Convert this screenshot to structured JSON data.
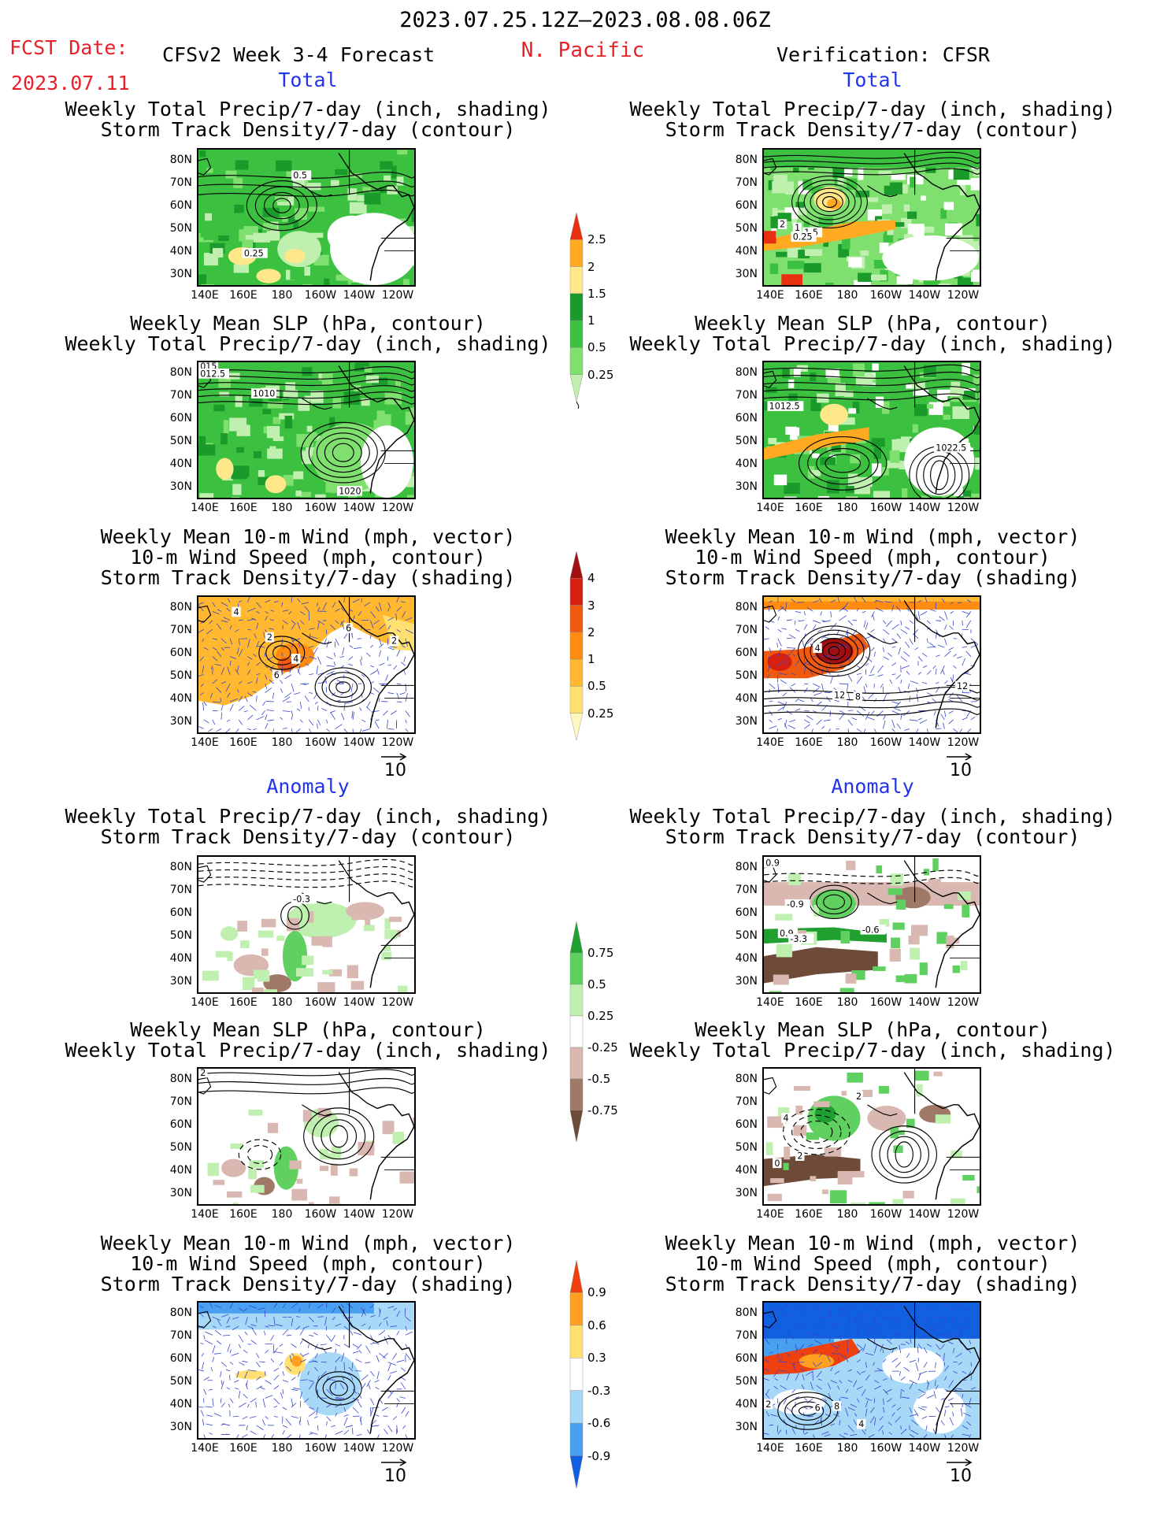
{
  "header": {
    "date_range": "2023.07.25.12Z—2023.08.08.06Z",
    "fcst_label": "FCST Date:",
    "fcst_date": "2023.07.11",
    "model": "CFSv2 Week 3-4 Forecast",
    "region": "N. Pacific",
    "verification": "Verification: CFSR"
  },
  "sections": {
    "total": "Total",
    "anomaly": "Anomaly"
  },
  "panel_titles": {
    "precip_storm": [
      "Weekly Total Precip/7-day (inch, shading)",
      "Storm Track Density/7-day (contour)"
    ],
    "slp_precip": [
      "Weekly Mean SLP (hPa, contour)",
      "Weekly Total Precip/7-day (inch, shading)"
    ],
    "wind_storm": [
      "Weekly Mean 10-m Wind (mph, vector)",
      "10-m Wind Speed (mph, contour)",
      "Storm Track Density/7-day (shading)"
    ]
  },
  "axes": {
    "lat_ticks": [
      "80N",
      "70N",
      "60N",
      "50N",
      "40N",
      "30N"
    ],
    "lon_ticks": [
      "140E",
      "160E",
      "180",
      "160W",
      "140W",
      "120W"
    ]
  },
  "vector_ref": "10",
  "colorbars": {
    "precip_total": {
      "colors": [
        "#bff0b0",
        "#7fe070",
        "#3cc040",
        "#1a9a2a",
        "#ffe88a",
        "#ffaa20",
        "#e83010"
      ],
      "labels": [
        "0.25",
        "0.5",
        "1",
        "1.5",
        "2",
        "2.5"
      ]
    },
    "storm_total": {
      "colors": [
        "#fff8c0",
        "#ffe070",
        "#ffb830",
        "#ff8c10",
        "#f05a10",
        "#d82010",
        "#a01010"
      ],
      "labels": [
        "0.25",
        "0.5",
        "1",
        "2",
        "3",
        "4"
      ]
    },
    "precip_anom": {
      "colors": [
        "#6e4a38",
        "#a07868",
        "#d8b8b0",
        "#ffffff",
        "#c0f0b0",
        "#60d060",
        "#20a030"
      ],
      "labels": [
        "-0.75",
        "-0.5",
        "-0.25",
        "0.25",
        "0.5",
        "0.75"
      ]
    },
    "storm_anom": {
      "colors": [
        "#1060e0",
        "#4aa0f0",
        "#a8d8f8",
        "#ffffff",
        "#ffe070",
        "#ffa020",
        "#f04010"
      ],
      "labels": [
        "-0.9",
        "-0.6",
        "-0.3",
        "0.3",
        "0.6",
        "0.9"
      ]
    }
  },
  "contour_labels": {
    "t_fc_precip": [
      "0.5",
      "0.25"
    ],
    "t_ob_precip": [
      "2",
      "1",
      "1.5",
      "0.25"
    ],
    "t_fc_slp": [
      "015",
      "012.5",
      "1010",
      "1020"
    ],
    "t_ob_slp": [
      "1012.5",
      "1022.5"
    ],
    "t_fc_wind": [
      "4",
      "2",
      "4",
      "6",
      "6",
      "2"
    ],
    "t_ob_wind": [
      "4",
      "12",
      "8",
      "12"
    ],
    "a_fc_precip": [
      "-0.3"
    ],
    "a_ob_precip": [
      "0.9",
      "-0.9",
      "0.9",
      "-3.3",
      "-0.6"
    ],
    "a_fc_slp": [
      "2"
    ],
    "a_ob_slp": [
      "2",
      "4",
      "2",
      "0"
    ],
    "a_ob_wind": [
      "2",
      "6",
      "8",
      "4"
    ]
  }
}
